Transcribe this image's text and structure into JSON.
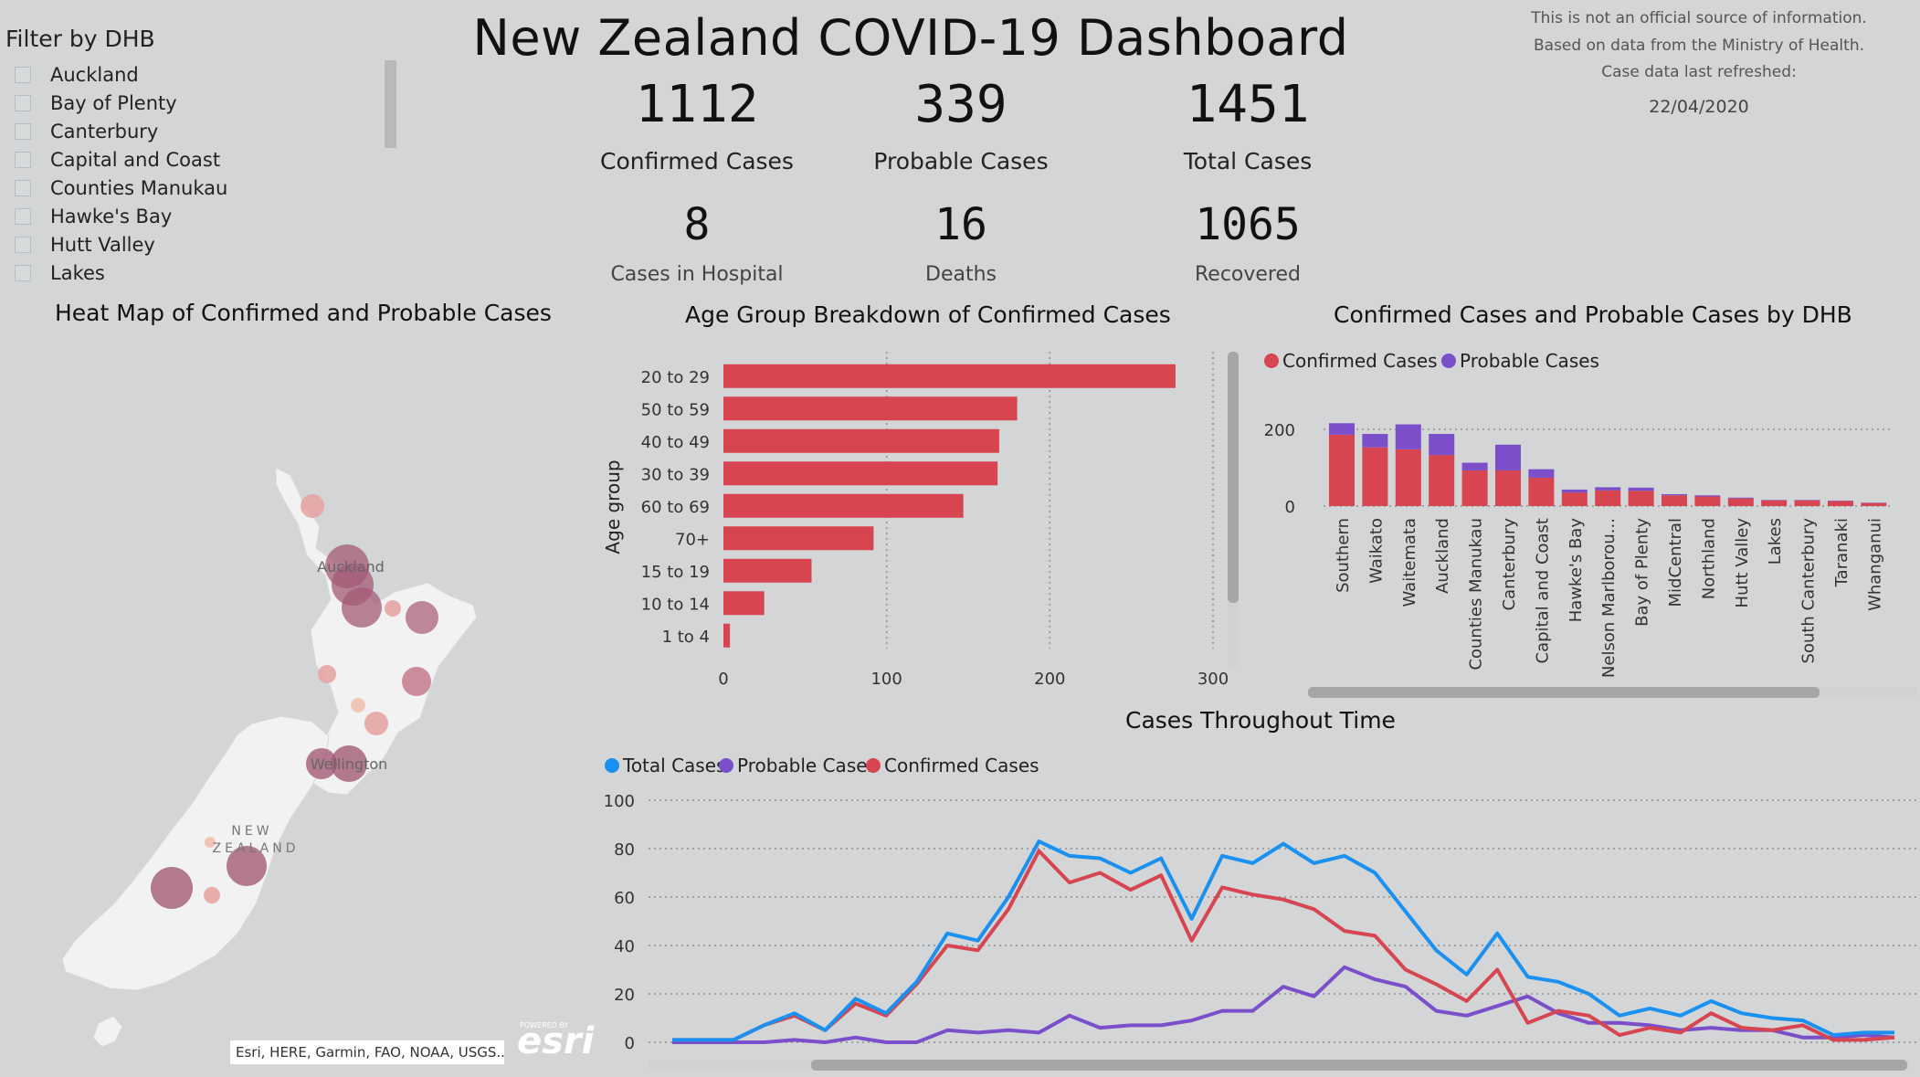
{
  "filter": {
    "title": "Filter by DHB",
    "items": [
      "Auckland",
      "Bay of Plenty",
      "Canterbury",
      "Capital and Coast",
      "Counties Manukau",
      "Hawke's Bay",
      "Hutt Valley",
      "Lakes"
    ]
  },
  "title": "New Zealand COVID-19 Dashboard",
  "kpis": {
    "confirmed": {
      "value": "1112",
      "label": "Confirmed Cases"
    },
    "probable": {
      "value": "339",
      "label": "Probable Cases"
    },
    "total": {
      "value": "1451",
      "label": "Total Cases"
    },
    "hospital": {
      "value": "8",
      "label": "Cases in Hospital"
    },
    "deaths": {
      "value": "16",
      "label": "Deaths"
    },
    "recovered": {
      "value": "1065",
      "label": "Recovered"
    }
  },
  "disclaimer": {
    "line1": "This is not an official source of information.",
    "line2": "Based on data from the Ministry of Health.",
    "line3": "Case data last refreshed:",
    "date": "22/04/2020"
  },
  "map": {
    "title": "Heat Map of Confirmed and Probable Cases",
    "labels": {
      "auckland": "Auckland",
      "wellington": "Wellington",
      "nz1": "NEW",
      "nz2": "ZEALAND"
    },
    "attribution": "Esri, HERE, Garmin, FAO, NOAA, USGS...",
    "logo": "esri",
    "powered": "POWERED BY"
  },
  "colors": {
    "confirmed": "#d64550",
    "probable": "#7a4fc9",
    "total": "#1a90f0",
    "bubble_dark": "#a35a76",
    "bubble_light": "#e6a5a5"
  },
  "chart_data": [
    {
      "id": "age",
      "type": "bar",
      "orientation": "horizontal",
      "title": "Age Group Breakdown of Confirmed Cases",
      "ylabel": "Age group",
      "categories": [
        "20 to 29",
        "50 to 59",
        "40 to 49",
        "30 to 39",
        "60 to 69",
        "70+",
        "15 to 19",
        "10 to 14",
        "1 to 4"
      ],
      "values": [
        277,
        180,
        169,
        168,
        147,
        92,
        54,
        25,
        4
      ],
      "xlim": [
        0,
        300
      ],
      "xticks": [
        0,
        100,
        200,
        300
      ]
    },
    {
      "id": "dhb",
      "type": "bar",
      "stacked": true,
      "title": "Confirmed Cases and Probable Cases by DHB",
      "legend": [
        "Confirmed Cases",
        "Probable Cases"
      ],
      "categories": [
        "Southern",
        "Waikato",
        "Waitemata",
        "Auckland",
        "Counties Manukau",
        "Canterbury",
        "Capital and Coast",
        "Hawke's Bay",
        "Nelson Marlborou...",
        "Bay of Plenty",
        "MidCentral",
        "Northland",
        "Hutt Valley",
        "Lakes",
        "South Canterbury",
        "Taranaki",
        "Whanganui"
      ],
      "series": [
        {
          "name": "Confirmed Cases",
          "values": [
            186,
            153,
            148,
            133,
            93,
            93,
            74,
            35,
            41,
            40,
            28,
            25,
            20,
            15,
            15,
            13,
            8
          ]
        },
        {
          "name": "Probable Cases",
          "values": [
            30,
            35,
            65,
            55,
            20,
            67,
            22,
            8,
            8,
            8,
            3,
            3,
            2,
            1,
            1,
            1,
            1
          ]
        }
      ],
      "ylim": [
        0,
        220
      ],
      "yticks": [
        0,
        200
      ]
    },
    {
      "id": "time",
      "type": "line",
      "title": "Cases Throughout Time",
      "legend": [
        "Total Cases",
        "Probable Cases",
        "Confirmed Cases"
      ],
      "ylim": [
        0,
        100
      ],
      "yticks": [
        0,
        20,
        40,
        60,
        80,
        100
      ],
      "series": [
        {
          "name": "Total Cases",
          "values": [
            1,
            1,
            1,
            7,
            12,
            5,
            18,
            12,
            25,
            45,
            42,
            60,
            83,
            77,
            76,
            70,
            76,
            51,
            77,
            74,
            82,
            74,
            77,
            70,
            54,
            38,
            28,
            45,
            27,
            25,
            20,
            11,
            14,
            11,
            17,
            12,
            10,
            9,
            3,
            4,
            4
          ]
        },
        {
          "name": "Probable Cases",
          "values": [
            0,
            0,
            0,
            0,
            1,
            0,
            2,
            0,
            0,
            5,
            4,
            5,
            4,
            11,
            6,
            7,
            7,
            9,
            13,
            13,
            23,
            19,
            31,
            26,
            23,
            13,
            11,
            15,
            19,
            12,
            8,
            8,
            7,
            5,
            6,
            5,
            5,
            2,
            2,
            3,
            2
          ]
        },
        {
          "name": "Confirmed Cases",
          "values": [
            1,
            1,
            1,
            7,
            11,
            5,
            16,
            11,
            24,
            40,
            38,
            55,
            79,
            66,
            70,
            63,
            69,
            42,
            64,
            61,
            59,
            55,
            46,
            44,
            30,
            24,
            17,
            30,
            8,
            13,
            11,
            3,
            6,
            4,
            12,
            6,
            5,
            7,
            1,
            1,
            2
          ]
        }
      ]
    }
  ]
}
